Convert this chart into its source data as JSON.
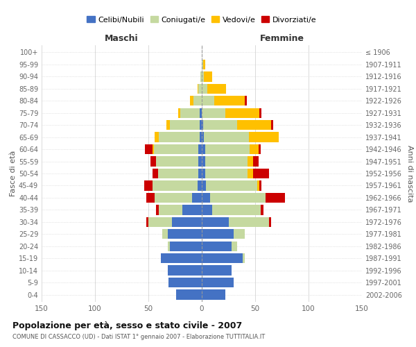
{
  "age_groups": [
    "0-4",
    "5-9",
    "10-14",
    "15-19",
    "20-24",
    "25-29",
    "30-34",
    "35-39",
    "40-44",
    "45-49",
    "50-54",
    "55-59",
    "60-64",
    "65-69",
    "70-74",
    "75-79",
    "80-84",
    "85-89",
    "90-94",
    "95-99",
    "100+"
  ],
  "birth_years": [
    "2002-2006",
    "1997-2001",
    "1992-1996",
    "1987-1991",
    "1982-1986",
    "1977-1981",
    "1972-1976",
    "1967-1971",
    "1962-1966",
    "1957-1961",
    "1952-1956",
    "1947-1951",
    "1942-1946",
    "1937-1941",
    "1932-1936",
    "1927-1931",
    "1922-1926",
    "1917-1921",
    "1912-1916",
    "1907-1911",
    "≤ 1906"
  ],
  "male": {
    "celibi": [
      24,
      31,
      32,
      38,
      30,
      32,
      28,
      18,
      9,
      4,
      3,
      3,
      3,
      2,
      2,
      2,
      0,
      0,
      0,
      0,
      0
    ],
    "coniugati": [
      0,
      0,
      0,
      0,
      2,
      5,
      22,
      22,
      35,
      42,
      38,
      40,
      42,
      38,
      28,
      18,
      8,
      3,
      1,
      0,
      0
    ],
    "vedovi": [
      0,
      0,
      0,
      0,
      0,
      0,
      0,
      0,
      0,
      0,
      0,
      0,
      1,
      4,
      3,
      2,
      3,
      1,
      0,
      0,
      0
    ],
    "divorziati": [
      0,
      0,
      0,
      0,
      0,
      0,
      2,
      3,
      8,
      8,
      5,
      5,
      7,
      0,
      0,
      0,
      0,
      0,
      0,
      0,
      0
    ]
  },
  "female": {
    "nubili": [
      22,
      30,
      28,
      38,
      28,
      30,
      25,
      10,
      8,
      4,
      3,
      3,
      3,
      2,
      1,
      0,
      0,
      0,
      0,
      0,
      0
    ],
    "coniugate": [
      0,
      0,
      0,
      2,
      5,
      10,
      38,
      45,
      52,
      48,
      40,
      40,
      42,
      42,
      32,
      22,
      12,
      5,
      2,
      1,
      0
    ],
    "vedove": [
      0,
      0,
      0,
      0,
      0,
      0,
      0,
      0,
      0,
      2,
      5,
      5,
      8,
      28,
      32,
      32,
      28,
      18,
      8,
      2,
      0
    ],
    "divorziate": [
      0,
      0,
      0,
      0,
      0,
      0,
      2,
      3,
      18,
      2,
      15,
      5,
      2,
      0,
      2,
      2,
      2,
      0,
      0,
      0,
      0
    ]
  },
  "colors": {
    "celibi": "#4472c4",
    "coniugati": "#c5d9a0",
    "vedovi": "#ffc000",
    "divorziati": "#cc0000"
  },
  "xlim": 150,
  "title": "Popolazione per età, sesso e stato civile - 2007",
  "subtitle": "COMUNE DI CASSACCO (UD) - Dati ISTAT 1° gennaio 2007 - Elaborazione TUTTITALIA.IT",
  "legend_labels": [
    "Celibi/Nubili",
    "Coniugati/e",
    "Vedovi/e",
    "Divorziati/e"
  ],
  "maschi_label": "Maschi",
  "femmine_label": "Femmine",
  "fasce_label": "Fasce di età",
  "anni_label": "Anni di nascita"
}
